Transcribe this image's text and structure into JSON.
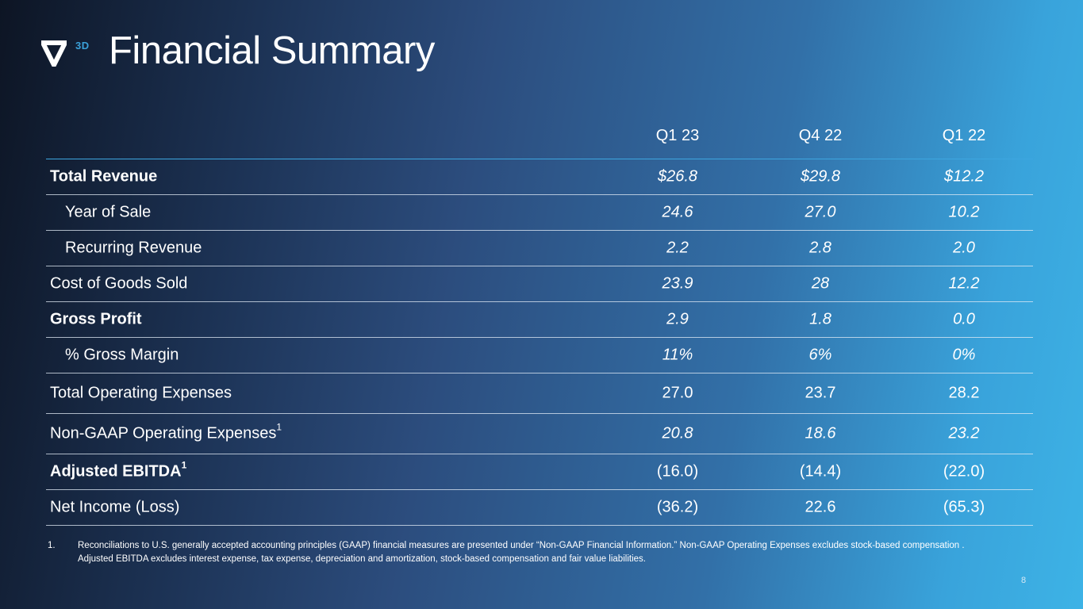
{
  "brand": {
    "logo_suffix": "3D",
    "accent": "#3aa0d8"
  },
  "title": "Financial Summary",
  "table": {
    "columns": [
      "Q1 23",
      "Q4 22",
      "Q1 22"
    ],
    "rows": [
      {
        "label": "Total Revenue",
        "values": [
          "$26.8",
          "$29.8",
          "$12.2"
        ]
      },
      {
        "label": "Year of Sale",
        "values": [
          "24.6",
          "27.0",
          "10.2"
        ]
      },
      {
        "label": "Recurring Revenue",
        "values": [
          "2.2",
          "2.8",
          "2.0"
        ]
      },
      {
        "label": "Cost of Goods Sold",
        "values": [
          "23.9",
          "28",
          "12.2"
        ]
      },
      {
        "label": "Gross Profit",
        "values": [
          "2.9",
          "1.8",
          "0.0"
        ]
      },
      {
        "label": "% Gross Margin",
        "values": [
          "11%",
          "6%",
          "0%"
        ]
      },
      {
        "label": "Total Operating Expenses",
        "values": [
          "27.0",
          "23.7",
          "28.2"
        ]
      },
      {
        "label": "Non-GAAP Operating Expenses",
        "sup": "1",
        "values": [
          "20.8",
          "18.6",
          "23.2"
        ]
      },
      {
        "label": "Adjusted EBITDA",
        "sup": "1",
        "values": [
          "(16.0)",
          "(14.4)",
          "(22.0)"
        ]
      },
      {
        "label": "Net Income (Loss)",
        "values": [
          "(36.2)",
          "22.6",
          "(65.3)"
        ]
      }
    ]
  },
  "footnote": {
    "number": "1.",
    "text": "Reconciliations to U.S. generally accepted accounting principles (GAAP) financial measures are presented under “Non-GAAP Financial Information.”  Non-GAAP Operating Expenses excludes stock-based compensation .  Adjusted EBITDA excludes interest expense, tax expense, depreciation and amortization, stock-based compensation and fair value liabilities."
  },
  "page_number": "8"
}
